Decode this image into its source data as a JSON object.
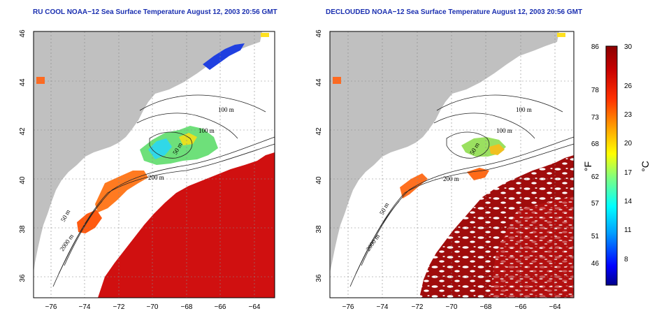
{
  "panels": [
    {
      "id": "left",
      "title": "RU COOL NOAA−12 Sea Surface Temperature August 12, 2003 20:56 GMT",
      "x_ticks": [
        "−76",
        "−74",
        "−72",
        "−70",
        "−68",
        "−66",
        "−64"
      ],
      "y_ticks": [
        "46",
        "44",
        "42",
        "40",
        "38",
        "36"
      ],
      "contour_labels": [
        "100 m",
        "100 m",
        "50 m",
        "200 m",
        "50 m",
        "2000 m"
      ]
    },
    {
      "id": "right",
      "title": "DECLOUDED NOAA−12 Sea Surface Temperature August 12, 2003 20:56 GMT",
      "x_ticks": [
        "−76",
        "−74",
        "−72",
        "−70",
        "−68",
        "−66",
        "−64"
      ],
      "y_ticks": [
        "46",
        "44",
        "42",
        "40",
        "38",
        "36"
      ],
      "contour_labels": [
        "100 m",
        "100 m",
        "50 m",
        "200 m",
        "50 m",
        "2000 m"
      ]
    }
  ],
  "colorbar": {
    "fahrenheit_ticks": [
      "86",
      "78",
      "73",
      "68",
      "62",
      "57",
      "51",
      "46"
    ],
    "celsius_ticks": [
      "30",
      "26",
      "23",
      "20",
      "17",
      "14",
      "11",
      "8"
    ],
    "fahrenheit_unit": "°F",
    "celsius_unit": "°C",
    "colors": [
      "#00008b",
      "#0000ff",
      "#00a0ff",
      "#00ffff",
      "#7fff7f",
      "#ffff00",
      "#ffa000",
      "#ff3000",
      "#c80000",
      "#8b0000"
    ]
  },
  "colors": {
    "land": "#c0c0c0",
    "cloud": "#ffffff",
    "ocean_warm": "#d01010",
    "title": "#1a2fb0"
  }
}
